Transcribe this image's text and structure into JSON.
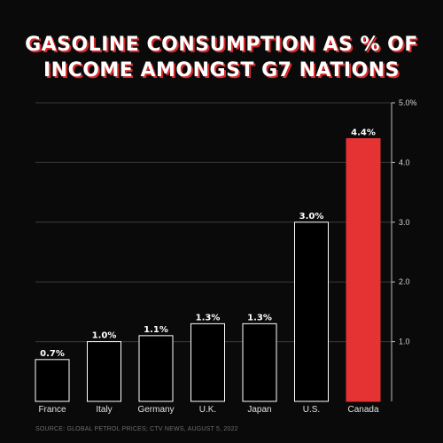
{
  "title_line1": "GASOLINE CONSUMPTION AS % OF",
  "title_line2": "INCOME AMONGST G7 NATIONS",
  "source": "SOURCE: GLOBAL PETROL PRICES; CTV NEWS, AUGUST 5, 2022",
  "colors": {
    "background": "#0a0a0a",
    "bar_fill": "#000000",
    "bar_stroke": "#ffffff",
    "highlight": "#e53333",
    "grid": "#3a3a3a",
    "title_shadow": "#d62a2a"
  },
  "chart_data": {
    "type": "bar",
    "title": "GASOLINE CONSUMPTION AS % OF INCOME AMONGST G7 NATIONS",
    "categories": [
      "France",
      "Italy",
      "Germany",
      "U.K.",
      "Japan",
      "U.S.",
      "Canada"
    ],
    "values": [
      0.7,
      1.0,
      1.1,
      1.3,
      1.3,
      3.0,
      4.4
    ],
    "data_labels": [
      "0.7%",
      "1.0%",
      "1.1%",
      "1.3%",
      "1.3%",
      "3.0%",
      "4.4%"
    ],
    "highlight": "Canada",
    "ylim": [
      0,
      5.0
    ],
    "yticks": [
      1.0,
      2.0,
      3.0,
      4.0,
      5.0
    ],
    "ytick_labels": [
      "1.0",
      "2.0",
      "3.0",
      "4.0",
      "5.0%"
    ],
    "y_axis_side": "right",
    "grid": true,
    "legend": "none"
  }
}
